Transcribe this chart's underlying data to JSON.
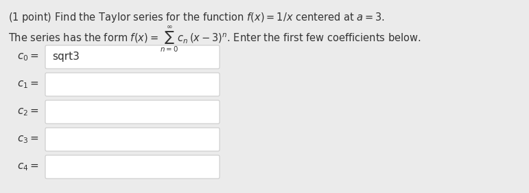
{
  "background_color": "#ebebeb",
  "title_line1": "(1 point) Find the Taylor series for the function $f(x) = 1/x$ centered at $a = 3$.",
  "title_line2": "The series has the form $f(x) = \\sum_{n=0}^{\\infty} c_n\\,(x - 3)^n$. Enter the first few coefficients below.",
  "labels": [
    "$\\mathbf{\\it{c}}_0 =$",
    "$\\mathbf{\\it{c}}_1 =$",
    "$\\mathbf{\\it{c}}_2 =$",
    "$\\mathbf{\\it{c}}_3 =$",
    "$\\mathbf{\\it{c}}_4 =$"
  ],
  "input_texts": [
    "sqrt3",
    "",
    "",
    "",
    ""
  ],
  "text_color": "#333333",
  "box_face_color": "#ffffff",
  "box_edge_color": "#cccccc",
  "label_fontsize": 11,
  "title_fontsize": 10.5,
  "input_fontsize": 11
}
